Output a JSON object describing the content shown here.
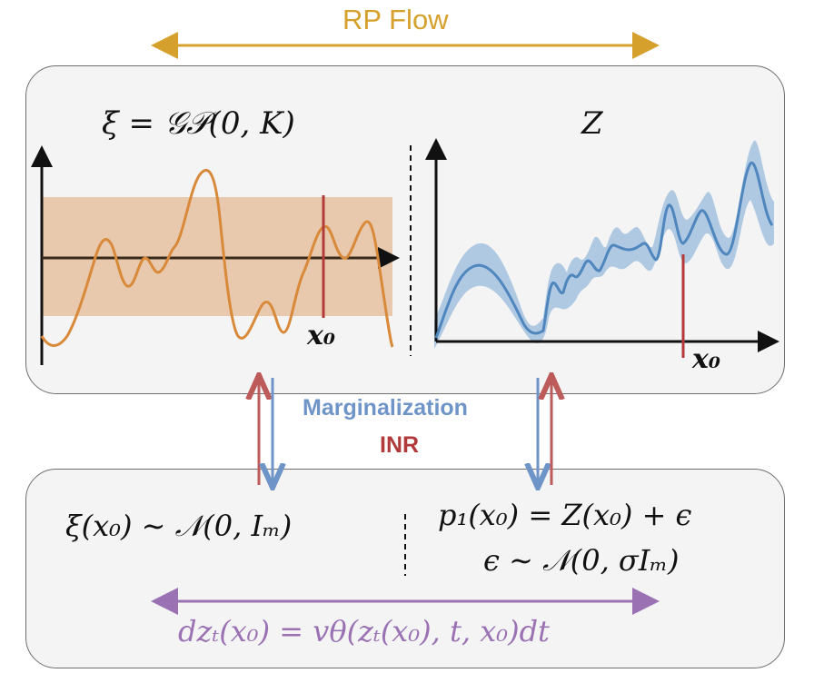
{
  "top_flow": {
    "label": "RP Flow"
  },
  "top_panel": {
    "left_title": "ξ = 𝒢𝒫(0, K)",
    "right_title": "Z",
    "left_marker_label": "x₀",
    "right_marker_label": "x₀"
  },
  "middle": {
    "marginalization_label": "Marginalization",
    "inr_label": "INR"
  },
  "bottom_panel": {
    "left_formula": "ξ(x₀) ∼ 𝒩(0, Iₘ)",
    "right_formula_line1": "p₁(x₀) = Z(x₀) + ϵ",
    "right_formula_line2": "ϵ ∼ 𝒩(0, σIₘ)",
    "flow_equation": "dzₜ(x₀) = vθ(zₜ(x₀), t, x₀)dt"
  },
  "colors": {
    "gold": "#d6a02c",
    "orange_curve": "#d8893a",
    "band": "#e8c9ad",
    "blue": "#4f86bd",
    "blue_band": "#a9c4e0",
    "red": "#b23a3a",
    "purple": "#9a72b4",
    "arrow_blue": "#6f95c8",
    "arrow_red": "#bd5b5b"
  }
}
